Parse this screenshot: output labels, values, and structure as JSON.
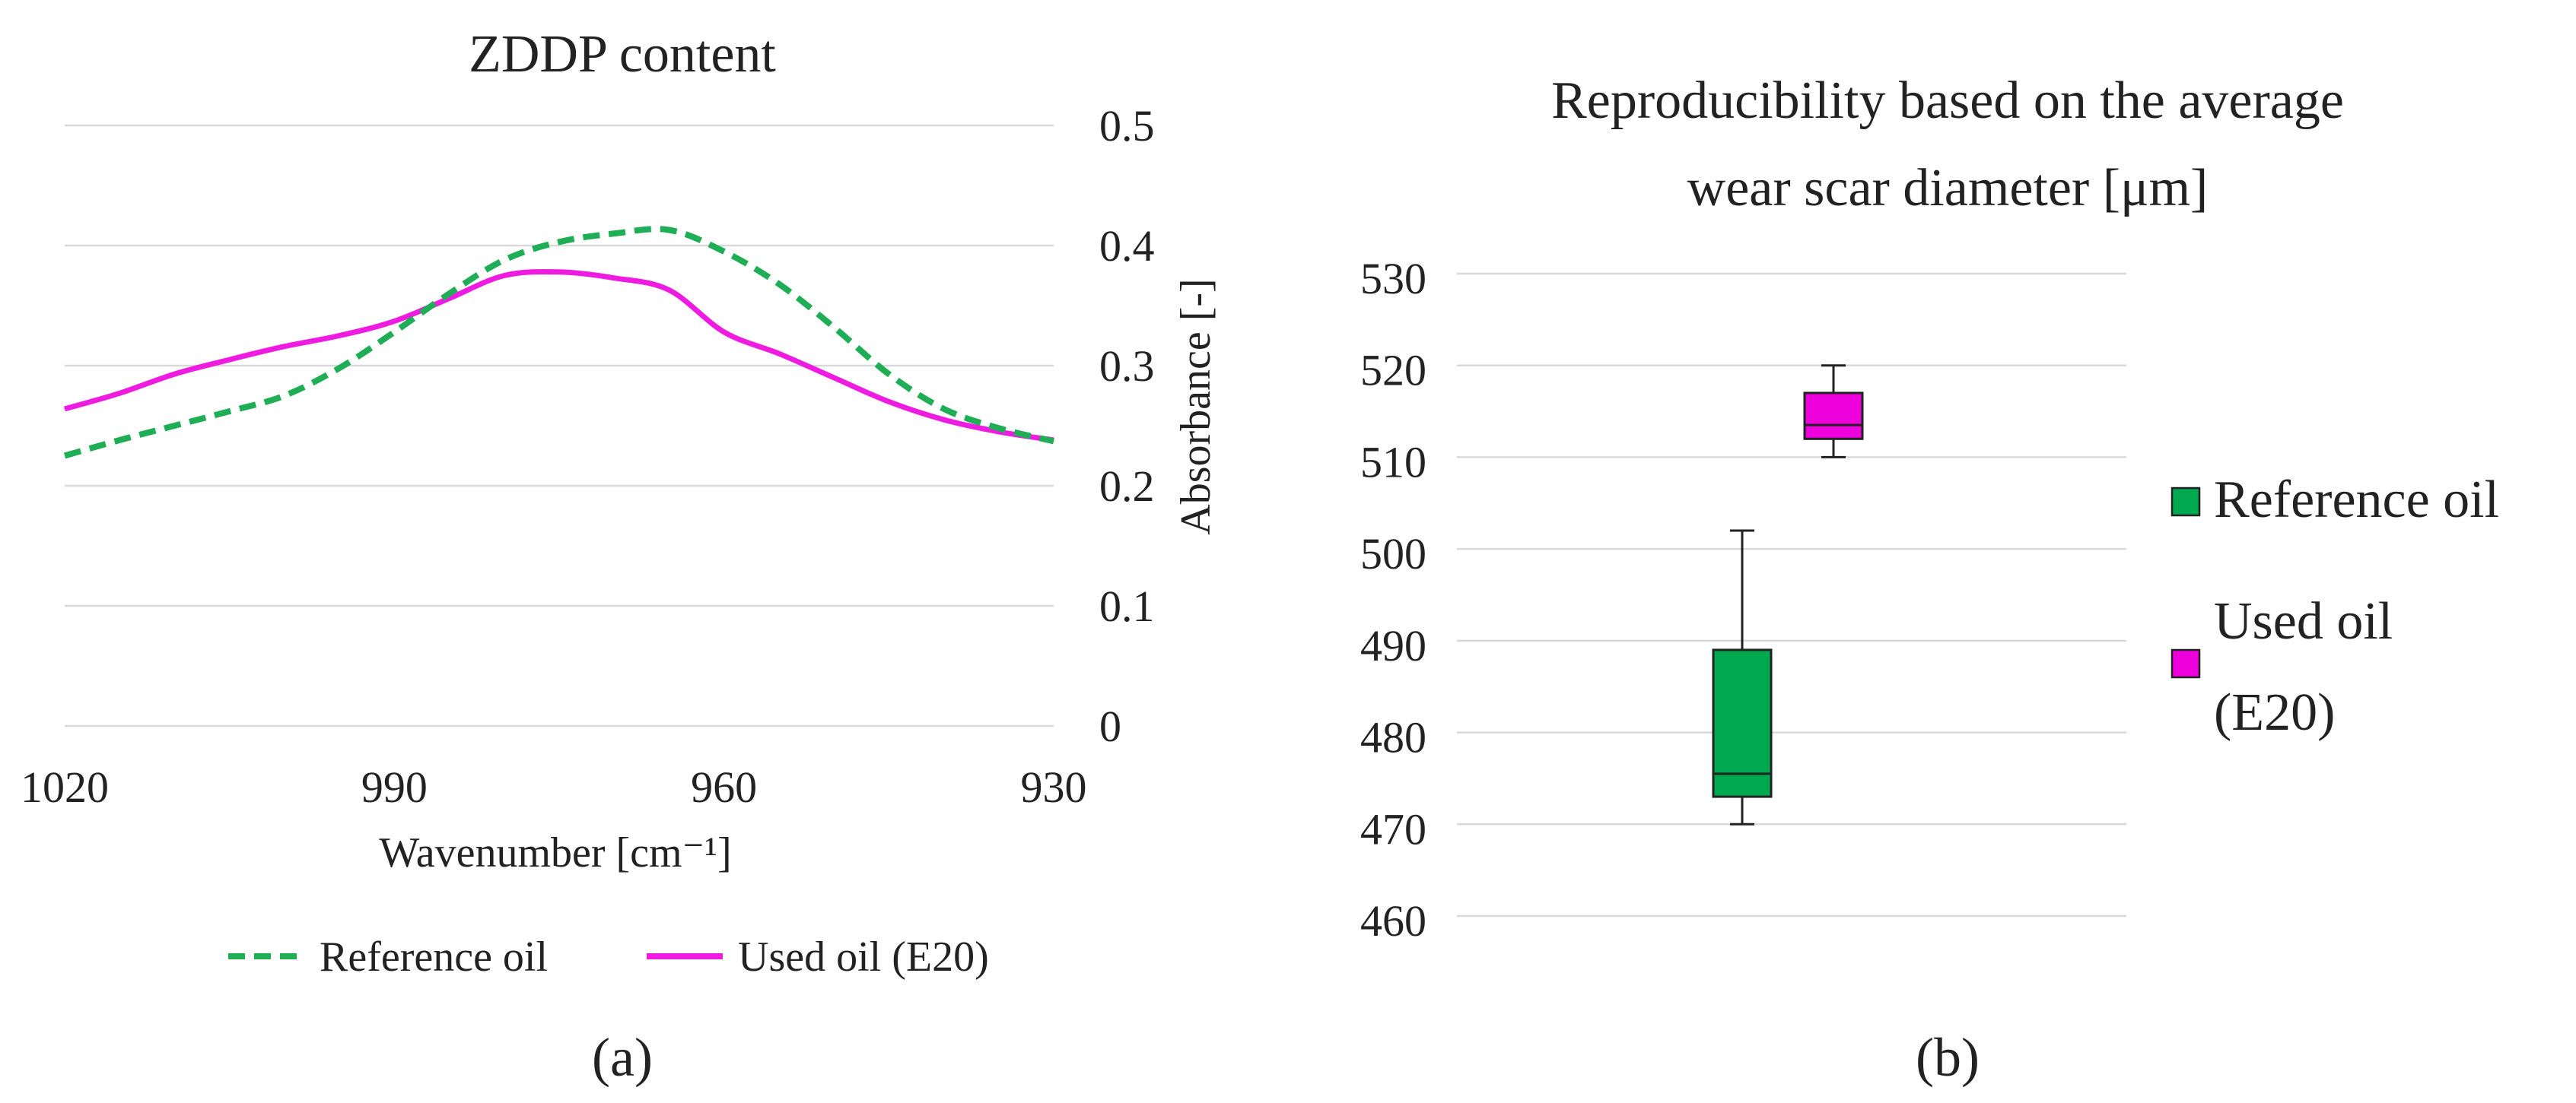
{
  "chart_data": [
    {
      "type": "line",
      "title": "ZDDP content",
      "xlabel": "Wavenumber [cm⁻¹]",
      "ylabel": "Absorbance [-]",
      "xlim": [
        1020,
        930
      ],
      "ylim": [
        0,
        0.5
      ],
      "x_ticks": [
        "1020",
        "990",
        "960",
        "930"
      ],
      "y_ticks": [
        "0",
        "0.1",
        "0.2",
        "0.3",
        "0.4",
        "0.5"
      ],
      "grid": true,
      "legend_position": "bottom",
      "series": [
        {
          "name": "Reference oil",
          "color": "#1fae55",
          "style": "dashed",
          "x": [
            1020,
            1015,
            1010,
            1005,
            1000,
            995,
            990,
            985,
            980,
            975,
            970,
            965,
            960,
            955,
            950,
            945,
            940,
            935,
            930
          ],
          "y": [
            0.225,
            0.238,
            0.25,
            0.262,
            0.275,
            0.298,
            0.328,
            0.36,
            0.388,
            0.403,
            0.41,
            0.413,
            0.395,
            0.368,
            0.332,
            0.293,
            0.264,
            0.248,
            0.237
          ]
        },
        {
          "name": "Used oil (E20)",
          "color": "#ee1ce0",
          "style": "solid",
          "x": [
            1020,
            1015,
            1010,
            1005,
            1000,
            995,
            990,
            985,
            980,
            975,
            970,
            965,
            960,
            955,
            950,
            945,
            940,
            935,
            930
          ],
          "y": [
            0.264,
            0.277,
            0.293,
            0.305,
            0.316,
            0.325,
            0.337,
            0.356,
            0.375,
            0.378,
            0.373,
            0.363,
            0.328,
            0.31,
            0.29,
            0.27,
            0.255,
            0.245,
            0.238
          ]
        }
      ]
    },
    {
      "type": "box",
      "title_lines": [
        "Reproducibility based on the average",
        "wear scar diameter [μm]"
      ],
      "ylim": [
        460,
        530
      ],
      "y_ticks": [
        "460",
        "470",
        "480",
        "490",
        "500",
        "510",
        "520",
        "530"
      ],
      "grid": true,
      "legend_position": "right",
      "series": [
        {
          "name": "Reference oil",
          "name_lines": [
            "Reference oil"
          ],
          "color": "#00a84f",
          "min": 470,
          "q1": 473,
          "median": 475.5,
          "q3": 489,
          "max": 502
        },
        {
          "name": "Used oil (E20)",
          "name_lines": [
            "Used oil",
            "(E20)"
          ],
          "color": "#ee00dd",
          "min": 510,
          "q1": 512,
          "median": 513.5,
          "q3": 517,
          "max": 520
        }
      ]
    }
  ],
  "panel_labels": [
    "(a)",
    "(b)"
  ]
}
